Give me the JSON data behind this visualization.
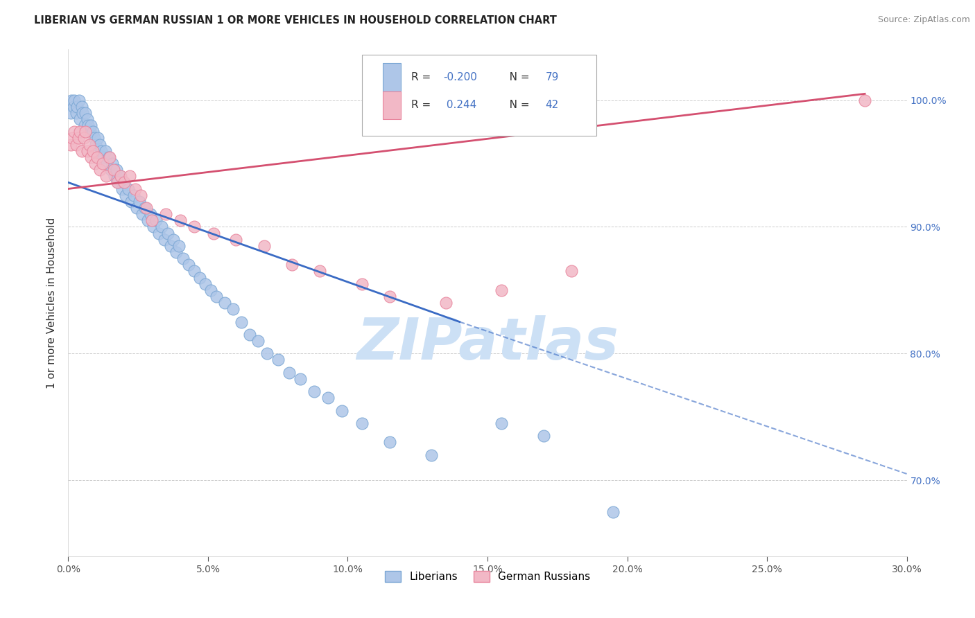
{
  "title": "LIBERIAN VS GERMAN RUSSIAN 1 OR MORE VEHICLES IN HOUSEHOLD CORRELATION CHART",
  "source": "Source: ZipAtlas.com",
  "ylabel": "1 or more Vehicles in Household",
  "xmin": 0.0,
  "xmax": 30.0,
  "ymin": 64.0,
  "ymax": 104.0,
  "x_tick_vals": [
    0,
    5,
    10,
    15,
    20,
    25,
    30
  ],
  "x_tick_labels": [
    "0.0%",
    "5.0%",
    "10.0%",
    "15.0%",
    "20.0%",
    "25.0%",
    "30.0%"
  ],
  "y_tick_vals": [
    70.0,
    80.0,
    90.0,
    100.0
  ],
  "y_tick_labels": [
    "70.0%",
    "80.0%",
    "90.0%",
    "100.0%"
  ],
  "liberian_R": -0.2,
  "liberian_N": 79,
  "german_russian_R": 0.244,
  "german_russian_N": 42,
  "liberian_color": "#aec6e8",
  "liberian_edge": "#7ba7d4",
  "german_russian_color": "#f2b8c6",
  "german_russian_edge": "#e8849c",
  "trend_liberian_color": "#3a6bc4",
  "trend_german_color": "#d45070",
  "watermark_text": "ZIPatlas",
  "watermark_color": "#cce0f5",
  "legend_R_color": "#4472c4",
  "legend_text_color": "#333333",
  "right_axis_color": "#4472c4",
  "liberian_x": [
    0.08,
    0.12,
    0.18,
    0.22,
    0.28,
    0.32,
    0.38,
    0.42,
    0.48,
    0.52,
    0.58,
    0.62,
    0.68,
    0.72,
    0.78,
    0.82,
    0.88,
    0.92,
    0.98,
    1.05,
    1.12,
    1.18,
    1.25,
    1.32,
    1.38,
    1.45,
    1.52,
    1.58,
    1.65,
    1.72,
    1.78,
    1.85,
    1.92,
    1.98,
    2.05,
    2.15,
    2.25,
    2.35,
    2.45,
    2.55,
    2.65,
    2.75,
    2.85,
    2.95,
    3.05,
    3.15,
    3.25,
    3.35,
    3.45,
    3.55,
    3.65,
    3.75,
    3.85,
    3.95,
    4.1,
    4.3,
    4.5,
    4.7,
    4.9,
    5.1,
    5.3,
    5.6,
    5.9,
    6.2,
    6.5,
    6.8,
    7.1,
    7.5,
    7.9,
    8.3,
    8.8,
    9.3,
    9.8,
    10.5,
    11.5,
    13.0,
    15.5,
    17.0,
    19.5
  ],
  "liberian_y": [
    99.0,
    100.0,
    99.5,
    100.0,
    99.0,
    99.5,
    100.0,
    98.5,
    99.5,
    99.0,
    98.0,
    99.0,
    98.5,
    98.0,
    97.5,
    98.0,
    97.5,
    97.0,
    96.5,
    97.0,
    96.5,
    96.0,
    95.5,
    96.0,
    95.0,
    95.5,
    94.5,
    95.0,
    94.0,
    94.5,
    93.5,
    94.0,
    93.0,
    93.5,
    92.5,
    93.0,
    92.0,
    92.5,
    91.5,
    92.0,
    91.0,
    91.5,
    90.5,
    91.0,
    90.0,
    90.5,
    89.5,
    90.0,
    89.0,
    89.5,
    88.5,
    89.0,
    88.0,
    88.5,
    87.5,
    87.0,
    86.5,
    86.0,
    85.5,
    85.0,
    84.5,
    84.0,
    83.5,
    82.5,
    81.5,
    81.0,
    80.0,
    79.5,
    78.5,
    78.0,
    77.0,
    76.5,
    75.5,
    74.5,
    73.0,
    72.0,
    74.5,
    73.5,
    67.5
  ],
  "german_russian_x": [
    0.08,
    0.15,
    0.22,
    0.28,
    0.35,
    0.42,
    0.48,
    0.55,
    0.62,
    0.68,
    0.75,
    0.82,
    0.88,
    0.95,
    1.02,
    1.12,
    1.22,
    1.35,
    1.48,
    1.62,
    1.75,
    1.88,
    2.0,
    2.2,
    2.4,
    2.6,
    2.8,
    3.0,
    3.5,
    4.0,
    4.5,
    5.2,
    6.0,
    7.0,
    8.0,
    9.0,
    10.5,
    11.5,
    13.5,
    15.5,
    18.0,
    28.5
  ],
  "german_russian_y": [
    96.5,
    97.0,
    97.5,
    96.5,
    97.0,
    97.5,
    96.0,
    97.0,
    97.5,
    96.0,
    96.5,
    95.5,
    96.0,
    95.0,
    95.5,
    94.5,
    95.0,
    94.0,
    95.5,
    94.5,
    93.5,
    94.0,
    93.5,
    94.0,
    93.0,
    92.5,
    91.5,
    90.5,
    91.0,
    90.5,
    90.0,
    89.5,
    89.0,
    88.5,
    87.0,
    86.5,
    85.5,
    84.5,
    84.0,
    85.0,
    86.5,
    100.0
  ],
  "liberian_trend_x0": 0.0,
  "liberian_trend_y0": 93.5,
  "liberian_trend_x1": 14.0,
  "liberian_trend_y1": 82.5,
  "liberian_trend_x2": 30.0,
  "liberian_trend_y2": 70.5,
  "german_trend_x0": 0.0,
  "german_trend_y0": 93.0,
  "german_trend_x1": 28.5,
  "german_trend_y1": 100.5
}
